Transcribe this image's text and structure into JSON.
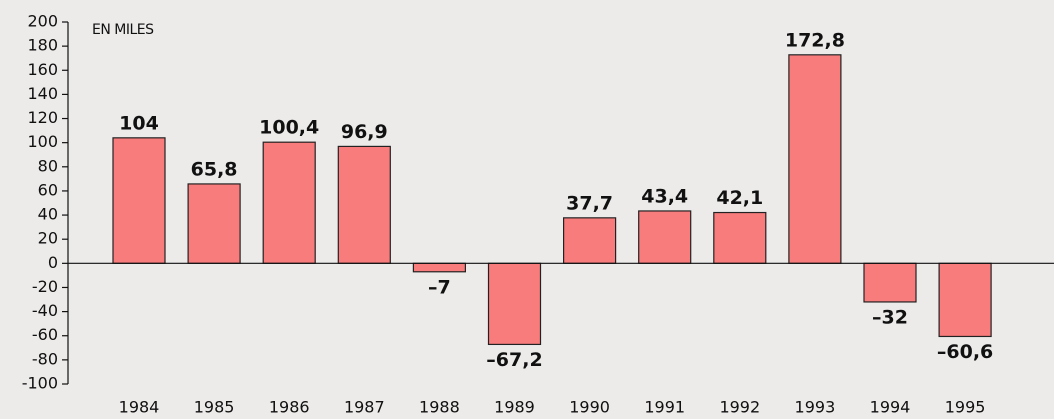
{
  "chart_data": {
    "type": "bar",
    "annotation": "EN MILES",
    "categories": [
      "1984",
      "1985",
      "1986",
      "1987",
      "1988",
      "1989",
      "1990",
      "1991",
      "1992",
      "1993",
      "1994",
      "1995"
    ],
    "values": [
      104,
      65.8,
      100.4,
      96.9,
      -7,
      -67.2,
      37.7,
      43.4,
      42.1,
      172.8,
      -32,
      -60.6
    ],
    "value_labels": [
      "104",
      "65,8",
      "100,4",
      "96,9",
      "–7",
      "–67,2",
      "37,7",
      "43,4",
      "42,1",
      "172,8",
      "–32",
      "–60,6"
    ],
    "color": "#f97c7c",
    "ylim": [
      -100,
      200
    ],
    "yticks": [
      200,
      180,
      160,
      140,
      120,
      100,
      80,
      60,
      40,
      20,
      0,
      -20,
      -40,
      -60,
      -80,
      -100
    ],
    "grid": false
  }
}
